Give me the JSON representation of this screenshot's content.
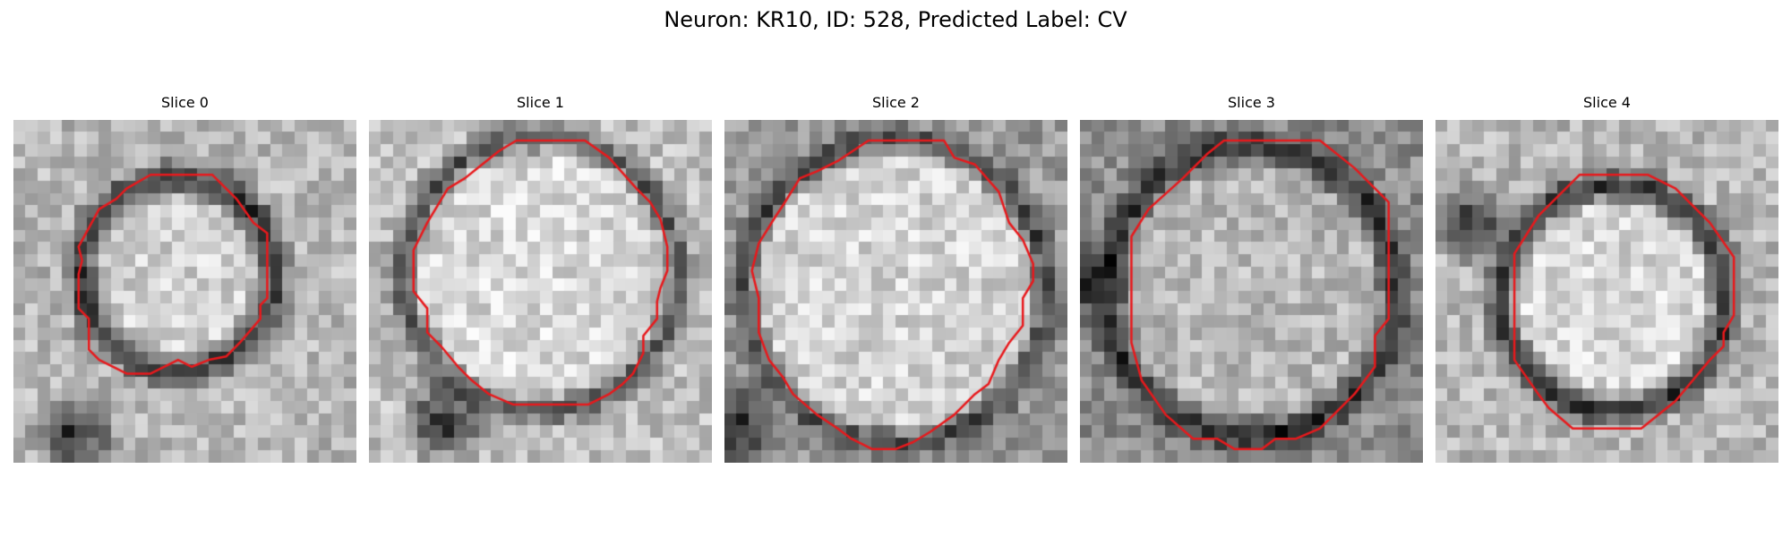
{
  "figure": {
    "title": "Neuron: KR10, ID: 528, Predicted Label: CV"
  },
  "panels": [
    {
      "title": "Slice 0",
      "grid_size": 28,
      "pattern": {
        "ring_center": [
          0.48,
          0.45
        ],
        "ring_radius": 0.28,
        "ring_width": 0.07,
        "inner_brightness": 0.82,
        "outer_brightness": 0.72,
        "ring_darkness": 0.18,
        "extra_dark_spot": [
          0.18,
          0.92
        ]
      },
      "contour": [
        [
          0.4,
          0.16
        ],
        [
          0.58,
          0.16
        ],
        [
          0.65,
          0.23
        ],
        [
          0.7,
          0.3
        ],
        [
          0.74,
          0.33
        ],
        [
          0.74,
          0.52
        ],
        [
          0.72,
          0.54
        ],
        [
          0.72,
          0.58
        ],
        [
          0.66,
          0.65
        ],
        [
          0.62,
          0.69
        ],
        [
          0.57,
          0.7
        ],
        [
          0.52,
          0.72
        ],
        [
          0.48,
          0.7
        ],
        [
          0.4,
          0.74
        ],
        [
          0.33,
          0.74
        ],
        [
          0.25,
          0.7
        ],
        [
          0.22,
          0.67
        ],
        [
          0.22,
          0.58
        ],
        [
          0.19,
          0.55
        ],
        [
          0.19,
          0.45
        ],
        [
          0.2,
          0.41
        ],
        [
          0.19,
          0.37
        ],
        [
          0.25,
          0.26
        ],
        [
          0.3,
          0.23
        ],
        [
          0.33,
          0.2
        ]
      ]
    },
    {
      "title": "Slice 1",
      "grid_size": 28,
      "pattern": {
        "ring_center": [
          0.5,
          0.45
        ],
        "ring_radius": 0.4,
        "ring_width": 0.06,
        "inner_brightness": 0.85,
        "outer_brightness": 0.75,
        "ring_darkness": 0.3,
        "extra_dark_spot": [
          0.22,
          0.88
        ]
      },
      "contour": [
        [
          0.43,
          0.06
        ],
        [
          0.63,
          0.06
        ],
        [
          0.7,
          0.11
        ],
        [
          0.78,
          0.2
        ],
        [
          0.82,
          0.24
        ],
        [
          0.85,
          0.29
        ],
        [
          0.87,
          0.37
        ],
        [
          0.87,
          0.44
        ],
        [
          0.85,
          0.49
        ],
        [
          0.84,
          0.53
        ],
        [
          0.84,
          0.58
        ],
        [
          0.8,
          0.63
        ],
        [
          0.8,
          0.68
        ],
        [
          0.77,
          0.74
        ],
        [
          0.74,
          0.77
        ],
        [
          0.7,
          0.8
        ],
        [
          0.64,
          0.83
        ],
        [
          0.42,
          0.83
        ],
        [
          0.35,
          0.8
        ],
        [
          0.3,
          0.76
        ],
        [
          0.26,
          0.72
        ],
        [
          0.21,
          0.66
        ],
        [
          0.17,
          0.62
        ],
        [
          0.17,
          0.55
        ],
        [
          0.13,
          0.5
        ],
        [
          0.13,
          0.38
        ],
        [
          0.17,
          0.3
        ],
        [
          0.23,
          0.2
        ],
        [
          0.28,
          0.17
        ],
        [
          0.33,
          0.13
        ],
        [
          0.38,
          0.09
        ]
      ]
    },
    {
      "title": "Slice 2",
      "grid_size": 28,
      "pattern": {
        "ring_center": [
          0.5,
          0.5
        ],
        "ring_radius": 0.44,
        "ring_width": 0.06,
        "inner_brightness": 0.83,
        "outer_brightness": 0.6,
        "ring_darkness": 0.25,
        "extra_dark_spot": [
          0.05,
          0.9
        ]
      },
      "contour": [
        [
          0.42,
          0.06
        ],
        [
          0.64,
          0.06
        ],
        [
          0.67,
          0.11
        ],
        [
          0.73,
          0.13
        ],
        [
          0.8,
          0.21
        ],
        [
          0.83,
          0.3
        ],
        [
          0.87,
          0.35
        ],
        [
          0.9,
          0.42
        ],
        [
          0.9,
          0.47
        ],
        [
          0.87,
          0.52
        ],
        [
          0.87,
          0.6
        ],
        [
          0.83,
          0.65
        ],
        [
          0.8,
          0.7
        ],
        [
          0.77,
          0.77
        ],
        [
          0.73,
          0.8
        ],
        [
          0.67,
          0.86
        ],
        [
          0.6,
          0.91
        ],
        [
          0.55,
          0.94
        ],
        [
          0.5,
          0.96
        ],
        [
          0.43,
          0.96
        ],
        [
          0.37,
          0.93
        ],
        [
          0.33,
          0.9
        ],
        [
          0.27,
          0.86
        ],
        [
          0.2,
          0.8
        ],
        [
          0.17,
          0.75
        ],
        [
          0.13,
          0.7
        ],
        [
          0.1,
          0.62
        ],
        [
          0.1,
          0.52
        ],
        [
          0.08,
          0.44
        ],
        [
          0.1,
          0.36
        ],
        [
          0.15,
          0.28
        ],
        [
          0.17,
          0.25
        ],
        [
          0.22,
          0.17
        ],
        [
          0.27,
          0.15
        ],
        [
          0.33,
          0.12
        ]
      ]
    },
    {
      "title": "Slice 3",
      "grid_size": 28,
      "pattern": {
        "ring_center": [
          0.5,
          0.5
        ],
        "ring_radius": 0.42,
        "ring_width": 0.07,
        "inner_brightness": 0.72,
        "outer_brightness": 0.55,
        "ring_darkness": 0.15,
        "extra_dark_spot": [
          0.03,
          0.48
        ]
      },
      "contour": [
        [
          0.42,
          0.06
        ],
        [
          0.7,
          0.06
        ],
        [
          0.8,
          0.14
        ],
        [
          0.9,
          0.24
        ],
        [
          0.9,
          0.58
        ],
        [
          0.86,
          0.63
        ],
        [
          0.86,
          0.72
        ],
        [
          0.8,
          0.8
        ],
        [
          0.7,
          0.9
        ],
        [
          0.63,
          0.93
        ],
        [
          0.57,
          0.93
        ],
        [
          0.53,
          0.96
        ],
        [
          0.45,
          0.96
        ],
        [
          0.4,
          0.93
        ],
        [
          0.33,
          0.93
        ],
        [
          0.25,
          0.86
        ],
        [
          0.18,
          0.76
        ],
        [
          0.15,
          0.65
        ],
        [
          0.15,
          0.34
        ],
        [
          0.2,
          0.26
        ],
        [
          0.3,
          0.17
        ],
        [
          0.37,
          0.1
        ]
      ]
    },
    {
      "title": "Slice 4",
      "grid_size": 28,
      "pattern": {
        "ring_center": [
          0.52,
          0.52
        ],
        "ring_radius": 0.33,
        "ring_width": 0.07,
        "inner_brightness": 0.85,
        "outer_brightness": 0.72,
        "ring_darkness": 0.18,
        "extra_dark_spot": [
          0.1,
          0.3
        ]
      },
      "contour": [
        [
          0.42,
          0.16
        ],
        [
          0.62,
          0.16
        ],
        [
          0.7,
          0.2
        ],
        [
          0.8,
          0.3
        ],
        [
          0.87,
          0.4
        ],
        [
          0.87,
          0.57
        ],
        [
          0.84,
          0.62
        ],
        [
          0.84,
          0.66
        ],
        [
          0.8,
          0.7
        ],
        [
          0.7,
          0.82
        ],
        [
          0.6,
          0.9
        ],
        [
          0.4,
          0.9
        ],
        [
          0.33,
          0.84
        ],
        [
          0.3,
          0.8
        ],
        [
          0.23,
          0.7
        ],
        [
          0.23,
          0.39
        ],
        [
          0.3,
          0.28
        ],
        [
          0.38,
          0.2
        ]
      ]
    }
  ],
  "colors": {
    "contour": "#e8191c",
    "background": "#ffffff"
  }
}
